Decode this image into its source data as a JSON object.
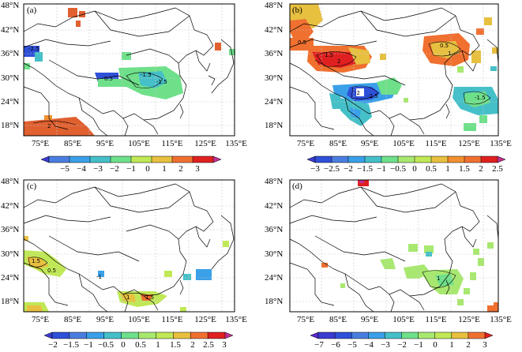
{
  "panels": [
    {
      "label": "(a)",
      "lat_labels": [
        "48°N",
        "42°N",
        "36°N",
        "30°N",
        "24°N",
        "18°N"
      ],
      "lon_labels": [
        "75°E",
        "85°E",
        "95°E",
        "105°E",
        "115°E",
        "125°E",
        "135°E"
      ],
      "colorbar_ticks": [
        "−5",
        "−4",
        "−3",
        "−2",
        "−1",
        "0",
        "1",
        "2",
        "3"
      ],
      "colorbar_colors": [
        "#3b3bd1",
        "#4a7de0",
        "#3aa0e8",
        "#46c0c8",
        "#6fe08a",
        "#c0e856",
        "#e8c040",
        "#f07030",
        "#e02020",
        "#c03090"
      ]
    },
    {
      "label": "(b)",
      "lat_labels": [
        "48°N",
        "42°N",
        "36°N",
        "30°N",
        "24°N",
        "18°N"
      ],
      "lon_labels": [
        "75°E",
        "85°E",
        "95°E",
        "105°E",
        "115°E",
        "125°E",
        "135°E"
      ],
      "colorbar_ticks": [
        "−3",
        "−2.5",
        "−2",
        "−1.5",
        "−1",
        "−0.5",
        "0",
        "0.5",
        "1",
        "1.5",
        "2",
        "2.5"
      ],
      "colorbar_colors": [
        "#3b3bd1",
        "#2f50d8",
        "#4a7de0",
        "#3aa0e8",
        "#46c0c8",
        "#6fe08a",
        "#a8e870",
        "#c0e856",
        "#e8c040",
        "#f09030",
        "#f07030",
        "#e02020",
        "#c03090"
      ]
    },
    {
      "label": "(c)",
      "lat_labels": [
        "48°N",
        "42°N",
        "36°N",
        "30°N",
        "24°N",
        "18°N"
      ],
      "lon_labels": [
        "75°E",
        "85°E",
        "95°E",
        "105°E",
        "115°E",
        "125°E",
        "135°E"
      ],
      "colorbar_ticks": [
        "−2",
        "−1.5",
        "−1",
        "−0.5",
        "0",
        "0.5",
        "1",
        "1.5",
        "2",
        "2.5",
        "3"
      ],
      "colorbar_colors": [
        "#3b3bd1",
        "#2f50d8",
        "#4a7de0",
        "#3aa0e8",
        "#46c0c8",
        "#6fe08a",
        "#a8e870",
        "#c0e856",
        "#e8c040",
        "#f07030",
        "#e02020",
        "#c03090"
      ]
    },
    {
      "label": "(d)",
      "lat_labels": [
        "48°N",
        "42°N",
        "36°N",
        "30°N",
        "24°N",
        "18°N"
      ],
      "lon_labels": [
        "75°E",
        "85°E",
        "95°E",
        "105°E",
        "115°E",
        "125°E",
        "135°E"
      ],
      "colorbar_ticks": [
        "−7",
        "−6",
        "−5",
        "−4",
        "−3",
        "−2",
        "−1",
        "0",
        "1",
        "2",
        "3"
      ],
      "colorbar_colors": [
        "#5a2ad0",
        "#3b3bd1",
        "#2f50d8",
        "#4a7de0",
        "#3aa0e8",
        "#46c0c8",
        "#6fe08a",
        "#a8e870",
        "#c0e856",
        "#e8c040",
        "#f07030",
        "#e02020"
      ]
    }
  ],
  "contour_labels": {
    "a": [
      "-1.5",
      "-1.5",
      "-2.5",
      "0.5",
      "2"
    ],
    "b": [
      "-2",
      "-2.5",
      "-1.5",
      "0.5",
      "0.5",
      "1.5",
      "2",
      "1"
    ],
    "c": [
      "-1",
      "1.5",
      "0.5",
      "1",
      "1.5"
    ],
    "d": [
      "1"
    ]
  }
}
